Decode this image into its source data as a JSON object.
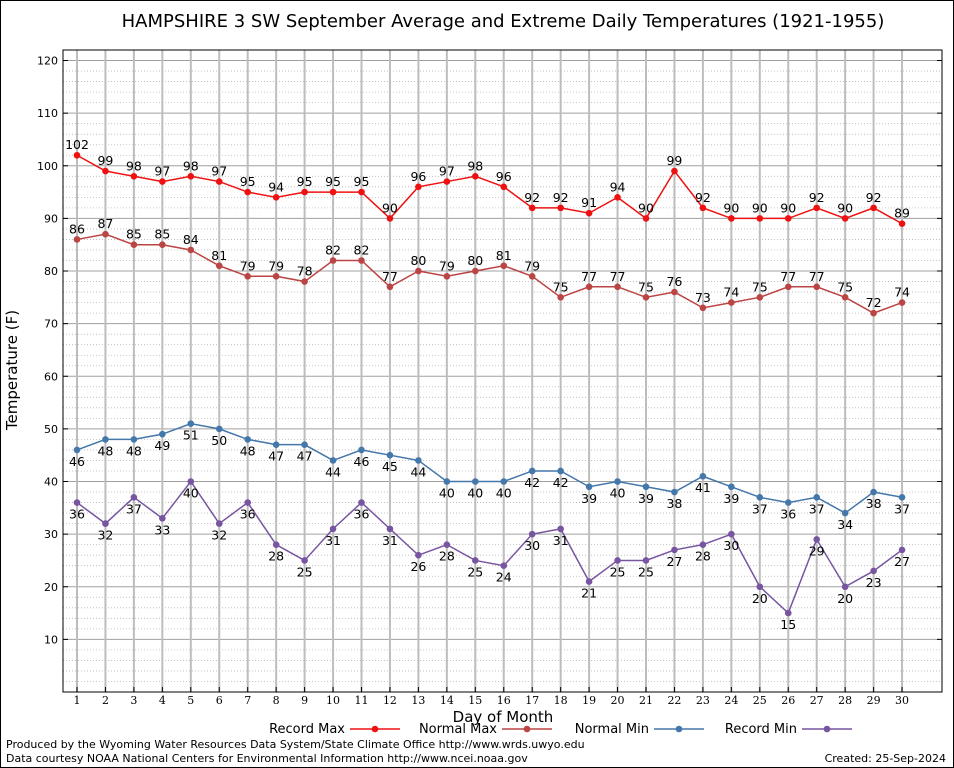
{
  "chart_data": {
    "type": "line",
    "title": "HAMPSHIRE 3 SW September Average and Extreme Daily Temperatures (1921-1955)",
    "xlabel": "Day of Month",
    "ylabel": "Temperature (F)",
    "x": [
      1,
      2,
      3,
      4,
      5,
      6,
      7,
      8,
      9,
      10,
      11,
      12,
      13,
      14,
      15,
      16,
      17,
      18,
      19,
      20,
      21,
      22,
      23,
      24,
      25,
      26,
      27,
      28,
      29,
      30
    ],
    "ylim": [
      0,
      122
    ],
    "yticks": [
      10,
      20,
      30,
      40,
      50,
      60,
      70,
      80,
      90,
      100,
      110,
      120
    ],
    "grid": true,
    "legend_position": "bottom",
    "series": [
      {
        "name": "Record Max",
        "color": "#ee1111",
        "values": [
          102,
          99,
          98,
          97,
          98,
          97,
          95,
          94,
          95,
          95,
          95,
          90,
          96,
          97,
          98,
          96,
          92,
          92,
          91,
          94,
          90,
          99,
          92,
          90,
          90,
          90,
          92,
          90,
          92,
          89
        ]
      },
      {
        "name": "Normal Max",
        "color": "#bb4444",
        "values": [
          86,
          87,
          85,
          85,
          84,
          81,
          79,
          79,
          78,
          82,
          82,
          77,
          80,
          79,
          80,
          81,
          79,
          75,
          77,
          77,
          75,
          76,
          73,
          74,
          75,
          77,
          77,
          75,
          72,
          74
        ]
      },
      {
        "name": "Normal Min",
        "color": "#4477aa",
        "values": [
          46,
          48,
          48,
          49,
          51,
          50,
          48,
          47,
          47,
          44,
          46,
          45,
          44,
          40,
          40,
          40,
          42,
          42,
          39,
          40,
          39,
          38,
          41,
          39,
          37,
          36,
          37,
          34,
          38,
          37
        ]
      },
      {
        "name": "Record Min",
        "color": "#7755a0",
        "values": [
          36,
          32,
          37,
          33,
          40,
          32,
          36,
          28,
          25,
          31,
          36,
          31,
          26,
          28,
          25,
          24,
          30,
          31,
          21,
          25,
          25,
          27,
          28,
          30,
          20,
          15,
          29,
          20,
          23,
          27
        ]
      }
    ]
  },
  "footer": {
    "producer": "Produced by the Wyoming Water Resources Data System/State Climate Office http://www.wrds.uwyo.edu",
    "source": "Data courtesy NOAA National Centers for Environmental Information http://www.ncei.noaa.gov",
    "created": "Created:  25-Sep-2024"
  }
}
